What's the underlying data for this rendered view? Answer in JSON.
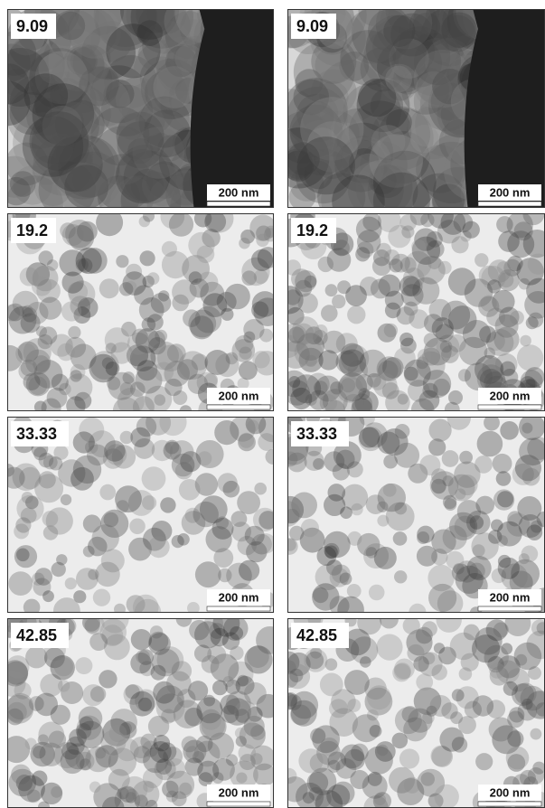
{
  "panels": [
    {
      "label": "9.09",
      "scale_bar": "200 nm"
    },
    {
      "label": "9.09",
      "scale_bar": "200 nm"
    },
    {
      "label": "19.2",
      "scale_bar": "200 nm"
    },
    {
      "label": "19.2",
      "scale_bar": "200 nm"
    },
    {
      "label": "33.33",
      "scale_bar": "200 nm"
    },
    {
      "label": "33.33",
      "scale_bar": "200 nm"
    },
    {
      "label": "42.85",
      "scale_bar": "200 nm"
    },
    {
      "label": "42.85",
      "scale_bar": "200 nm"
    }
  ]
}
